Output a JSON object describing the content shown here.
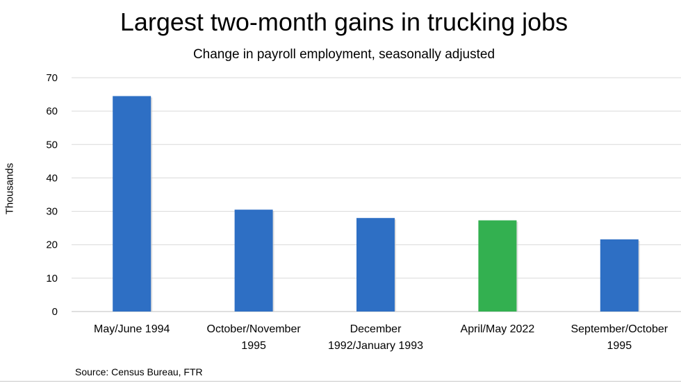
{
  "chart_data": {
    "type": "bar",
    "title": "Largest two-month gains in trucking jobs",
    "subtitle": "Change in payroll employment, seasonally adjusted",
    "ylabel": "Thousands",
    "xlabel": "",
    "ylim": [
      0,
      70
    ],
    "yticks": [
      0,
      10,
      20,
      30,
      40,
      50,
      60,
      70
    ],
    "grid": true,
    "legend": "none",
    "categories": [
      [
        "May/June 1994"
      ],
      [
        "October/November",
        "1995"
      ],
      [
        "December",
        "1992/January 1993"
      ],
      [
        "April/May 2022"
      ],
      [
        "September/October",
        "1995"
      ]
    ],
    "values": [
      64.5,
      30.5,
      28.0,
      27.3,
      21.6
    ],
    "colors": [
      "#2e6fc4",
      "#2e6fc4",
      "#2e6fc4",
      "#33b050",
      "#2e6fc4"
    ],
    "source": "Source: Census Bureau, FTR"
  }
}
